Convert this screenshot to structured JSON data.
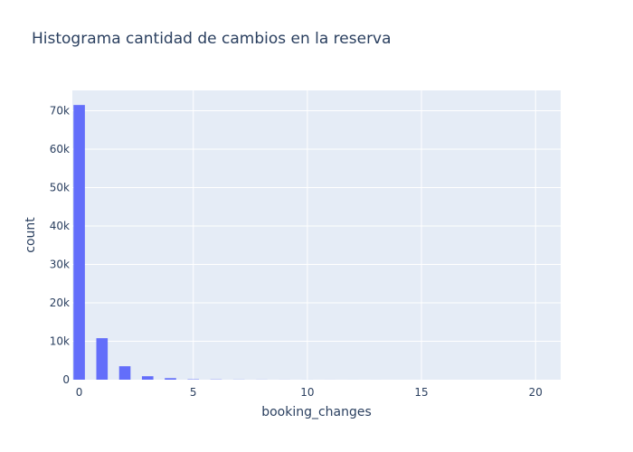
{
  "chart_data": {
    "type": "bar",
    "title": "Histograma cantidad de cambios en la reserva",
    "xlabel": "booking_changes",
    "ylabel": "count",
    "x": [
      0,
      1,
      2,
      3,
      4,
      5,
      6,
      7,
      8,
      9,
      10,
      11,
      12,
      13,
      14,
      15,
      16,
      17,
      18,
      20
    ],
    "values": [
      71500,
      10800,
      3500,
      900,
      400,
      100,
      60,
      30,
      20,
      10,
      8,
      5,
      4,
      3,
      2,
      2,
      1,
      1,
      1,
      1
    ],
    "xlim": [
      -0.3,
      21.1
    ],
    "ylim": [
      0,
      75300
    ],
    "x_ticks": [
      0,
      5,
      10,
      15,
      20
    ],
    "x_tick_labels": [
      "0",
      "5",
      "10",
      "15",
      "20"
    ],
    "y_ticks": [
      0,
      10000,
      20000,
      30000,
      40000,
      50000,
      60000,
      70000
    ],
    "y_tick_labels": [
      "0",
      "10k",
      "20k",
      "30k",
      "40k",
      "50k",
      "60k",
      "70k"
    ],
    "grid": true,
    "colors": {
      "bar": "#636efa",
      "plot_bg": "#e5ecf6",
      "grid": "#ffffff",
      "text": "#2a3f5f"
    }
  }
}
